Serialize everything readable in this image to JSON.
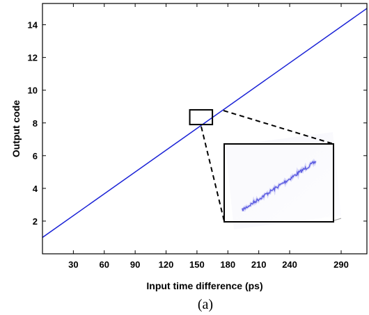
{
  "chart_data": {
    "type": "line",
    "title": "",
    "xlabel": "Input time difference (ps)",
    "ylabel": "Output code",
    "caption": "(a)",
    "xlim": [
      0,
      315
    ],
    "ylim": [
      0,
      15.3
    ],
    "x_ticks": [
      30,
      60,
      90,
      120,
      150,
      180,
      210,
      240,
      290
    ],
    "x_tick_labels": [
      "30",
      "60",
      "90",
      "120",
      "150",
      "180",
      "210",
      "240",
      "290"
    ],
    "y_ticks": [
      2,
      4,
      6,
      8,
      10,
      12,
      14
    ],
    "y_tick_labels": [
      "2",
      "4",
      "6",
      "8",
      "10",
      "12",
      "14"
    ],
    "grid": false,
    "legend": "none",
    "line_color": "#1a22d6",
    "series": [
      {
        "x": [
          0,
          315
        ],
        "y": [
          1.0,
          15.0
        ]
      }
    ],
    "zoom_box": {
      "x": [
        143,
        165
      ],
      "y": [
        7.9,
        8.8
      ]
    },
    "inset": "magnified view of the zoom box: noisy blue line segment"
  }
}
